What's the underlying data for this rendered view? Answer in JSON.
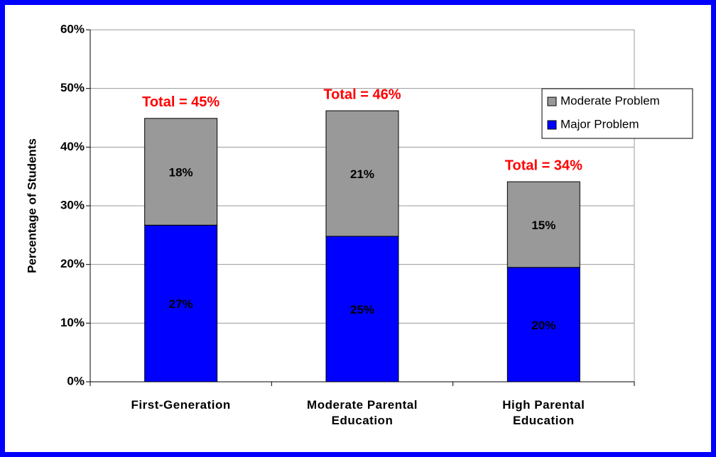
{
  "chart_data": {
    "type": "stacked_bar",
    "y_label": "Percentage of Students",
    "categories": [
      "First-Generation",
      "Moderate Parental Education",
      "High Parental Education"
    ],
    "series": [
      {
        "name": "Major Problem",
        "color": "#0000ff",
        "values": [
          26.7,
          24.8,
          19.5
        ],
        "value_labels": [
          "27%",
          "25%",
          "20%"
        ]
      },
      {
        "name": "Moderate Problem",
        "color": "#999999",
        "values": [
          18.2,
          21.4,
          14.6
        ],
        "value_labels": [
          "18%",
          "21%",
          "15%"
        ]
      }
    ],
    "annotations": [
      "Total = 45%",
      "Total = 46%",
      "Total = 34%"
    ],
    "ylim": [
      0,
      60
    ],
    "yticks": [
      {
        "value": 0,
        "label": "0%"
      },
      {
        "value": 10,
        "label": "10%"
      },
      {
        "value": 20,
        "label": "20%"
      },
      {
        "value": 30,
        "label": "30%"
      },
      {
        "value": 40,
        "label": "40%"
      },
      {
        "value": 50,
        "label": "50%"
      },
      {
        "value": 60,
        "label": "60%"
      }
    ],
    "grid": true,
    "legend": "upper right"
  }
}
